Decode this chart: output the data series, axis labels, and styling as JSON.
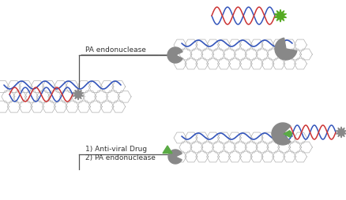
{
  "bg_color": "#ffffff",
  "go_edge_color": "#b0b0b0",
  "dna_blue": "#3355bb",
  "dna_red": "#cc3333",
  "enzyme_gray": "#888888",
  "drug_green": "#5aaa44",
  "star_gray": "#888888",
  "star_green": "#55aa22",
  "arrow_color": "#555555",
  "text_color": "#333333",
  "label_pa1": "PA endonuclease",
  "label_antiviral": "1) Anti-viral Drug",
  "label_pa2": "2) PA endonuclease",
  "font_size": 6.5,
  "fig_w": 4.38,
  "fig_h": 2.54,
  "dpi": 100
}
